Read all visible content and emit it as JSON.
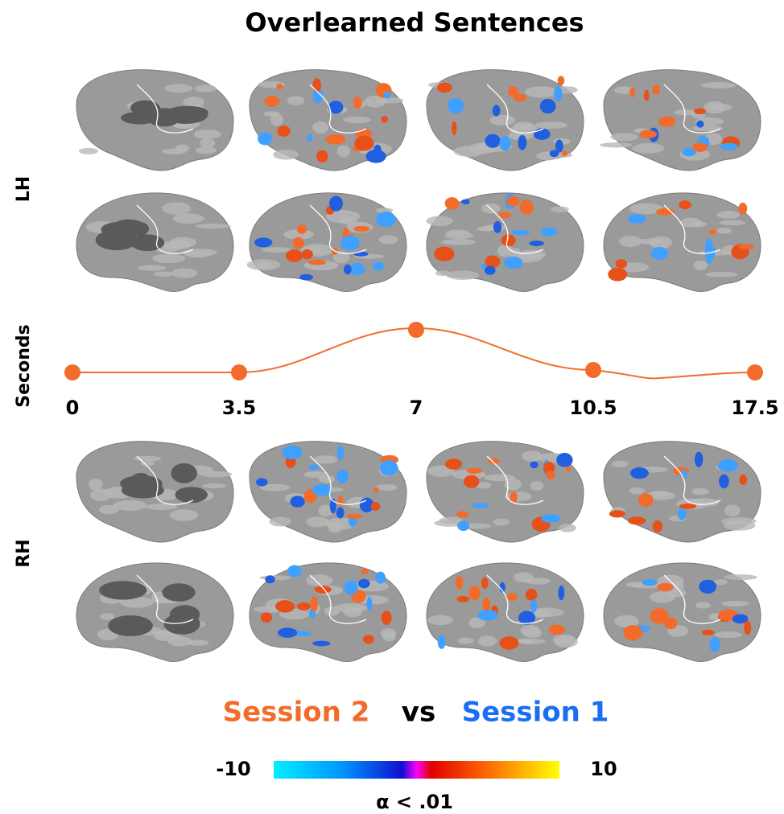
{
  "header": {
    "title": "Overlearned Sentences"
  },
  "rows": {
    "left": "LH",
    "right": "RH"
  },
  "timeline": {
    "label": "Seconds",
    "timepoints": [
      0,
      3.5,
      7,
      10.5,
      17.5
    ]
  },
  "legend": {
    "session_a": "Session 2",
    "versus": "vs",
    "session_b": "Session 1"
  },
  "colorbar": {
    "min": -10,
    "max": 10,
    "threshold": "α < .01"
  }
}
